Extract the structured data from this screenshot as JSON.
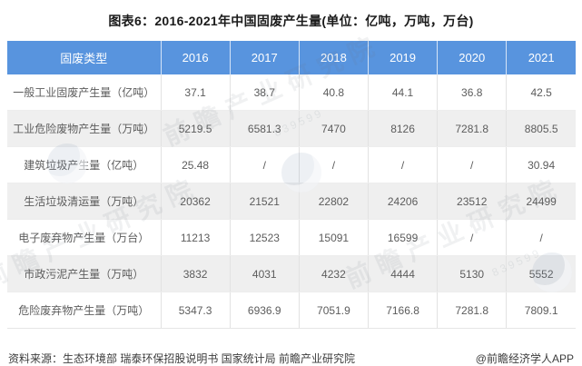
{
  "title": "图表6：2016-2021年中国固废产生量(单位：亿吨，万吨，万台)",
  "table": {
    "header": [
      "固废类型",
      "2016",
      "2017",
      "2018",
      "2019",
      "2020",
      "2021"
    ],
    "rows": [
      {
        "label": "一般工业固废产生量（亿吨）",
        "values": [
          "37.1",
          "38.7",
          "40.8",
          "44.1",
          "36.8",
          "42.5"
        ]
      },
      {
        "label": "工业危险废物产生量（万吨）",
        "values": [
          "5219.5",
          "6581.3",
          "7470",
          "8126",
          "7281.8",
          "8805.5"
        ]
      },
      {
        "label": "建筑垃圾产生量（亿吨）",
        "values": [
          "25.48",
          "/",
          "/",
          "/",
          "/",
          "30.94"
        ]
      },
      {
        "label": "生活垃圾清运量（万吨）",
        "values": [
          "20362",
          "21521",
          "22802",
          "24206",
          "23512",
          "24499"
        ]
      },
      {
        "label": "电子废弃物产生量（万台）",
        "values": [
          "11213",
          "12523",
          "15091",
          "16599",
          "/",
          "/"
        ]
      },
      {
        "label": "市政污泥产生量（万吨）",
        "values": [
          "3832",
          "4031",
          "4232",
          "4444",
          "5130",
          "5552"
        ]
      },
      {
        "label": "危险废弃物产生量（万吨）",
        "values": [
          "5347.3",
          "6936.9",
          "7051.9",
          "7166.8",
          "7281.8",
          "7809.1"
        ]
      }
    ]
  },
  "footer": {
    "source": "资料来源：生态环境部 瑞泰环保招股说明书 国家统计局 前瞻产业研究院",
    "credit": "@前瞻经济学人APP"
  },
  "watermark": {
    "text": "前瞻产业研究院",
    "code": "839599"
  },
  "colors": {
    "header_bg": "#5894de",
    "header_text": "#ffffff",
    "row_alt_bg": "#efefef",
    "cell_text": "#5c5c5c",
    "title_text": "#1a1a1a"
  },
  "chart_data": {
    "type": "table",
    "title": "图表6：2016-2021年中国固废产生量(单位：亿吨，万吨，万台)",
    "categories": [
      "2016",
      "2017",
      "2018",
      "2019",
      "2020",
      "2021"
    ],
    "series": [
      {
        "name": "一般工业固废产生量（亿吨）",
        "values": [
          37.1,
          38.7,
          40.8,
          44.1,
          36.8,
          42.5
        ]
      },
      {
        "name": "工业危险废物产生量（万吨）",
        "values": [
          5219.5,
          6581.3,
          7470,
          8126,
          7281.8,
          8805.5
        ]
      },
      {
        "name": "建筑垃圾产生量（亿吨）",
        "values": [
          25.48,
          null,
          null,
          null,
          null,
          30.94
        ]
      },
      {
        "name": "生活垃圾清运量（万吨）",
        "values": [
          20362,
          21521,
          22802,
          24206,
          23512,
          24499
        ]
      },
      {
        "name": "电子废弃物产生量（万台）",
        "values": [
          11213,
          12523,
          15091,
          16599,
          null,
          null
        ]
      },
      {
        "name": "市政污泥产生量（万吨）",
        "values": [
          3832,
          4031,
          4232,
          4444,
          5130,
          5552
        ]
      },
      {
        "name": "危险废弃物产生量（万吨）",
        "values": [
          5347.3,
          6936.9,
          7051.9,
          7166.8,
          7281.8,
          7809.1
        ]
      }
    ],
    "missing_value_marker": "/",
    "source_note": "资料来源：生态环境部 瑞泰环保招股说明书 国家统计局 前瞻产业研究院"
  }
}
